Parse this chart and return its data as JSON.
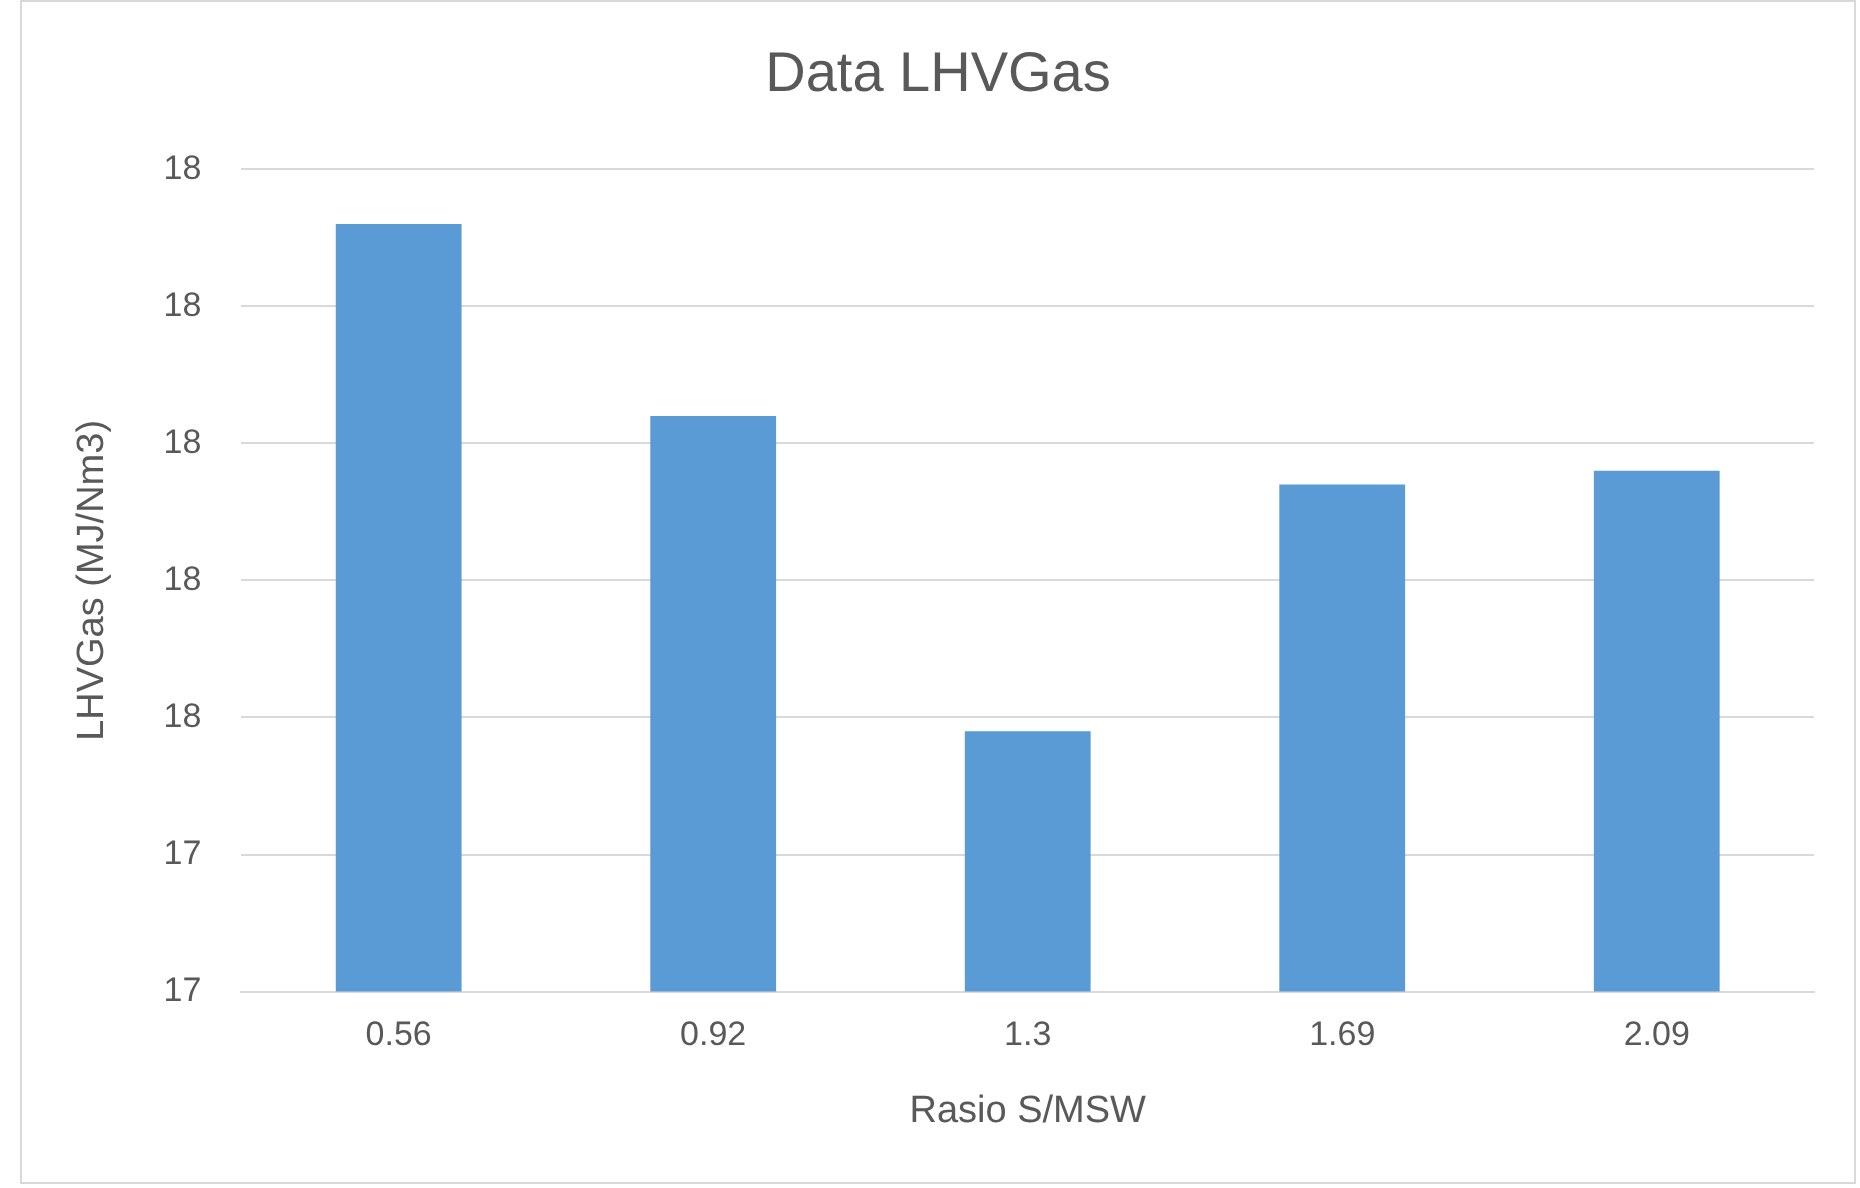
{
  "chart_data": {
    "type": "bar",
    "title": "Data LHVGas",
    "xlabel": "Rasio S/MSW",
    "ylabel": "LHVGas (MJ/Nm3)",
    "categories": [
      "0.56",
      "0.92",
      "1.3",
      "1.69",
      "2.09"
    ],
    "values": [
      17.86,
      17.72,
      17.49,
      17.67,
      17.68
    ],
    "color": "#5b9bd5",
    "ylim": [
      17.3,
      17.9
    ],
    "yticks": [
      {
        "value": 17.3,
        "label": "17"
      },
      {
        "value": 17.4,
        "label": "17"
      },
      {
        "value": 17.5,
        "label": "18"
      },
      {
        "value": 17.6,
        "label": "18"
      },
      {
        "value": 17.7,
        "label": "18"
      },
      {
        "value": 17.8,
        "label": "18"
      },
      {
        "value": 17.9,
        "label": "18"
      }
    ],
    "grid": "y"
  }
}
